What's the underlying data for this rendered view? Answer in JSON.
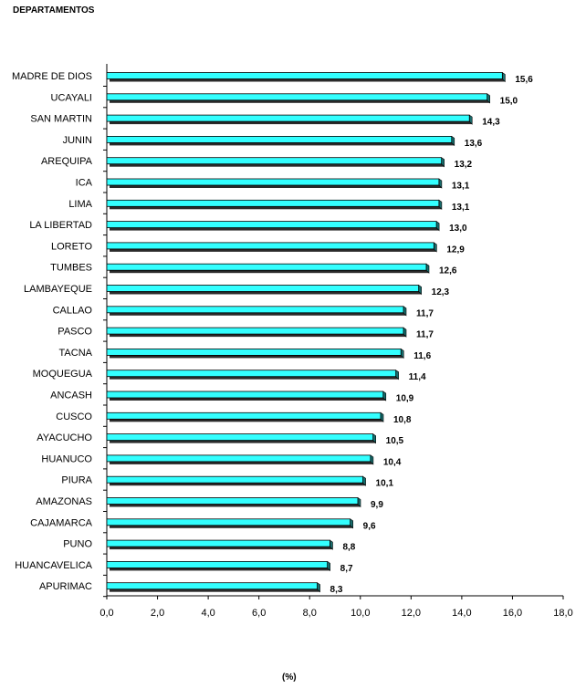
{
  "chart_data": {
    "type": "bar",
    "orientation": "horizontal",
    "title": "DEPARTAMENTOS",
    "xlabel": "(%)",
    "ylabel": "",
    "xlim": [
      0,
      18
    ],
    "x_ticks": [
      "0,0",
      "2,0",
      "4,0",
      "6,0",
      "8,0",
      "10,0",
      "12,0",
      "14,0",
      "16,0",
      "18,0"
    ],
    "grid": false,
    "legend": "none",
    "bar_color": "#33ffff",
    "categories": [
      "MADRE DE DIOS",
      "UCAYALI",
      "SAN MARTIN",
      "JUNIN",
      "AREQUIPA",
      "ICA",
      "LIMA",
      "LA LIBERTAD",
      "LORETO",
      "TUMBES",
      "LAMBAYEQUE",
      "CALLAO",
      "PASCO",
      "TACNA",
      "MOQUEGUA",
      "ANCASH",
      "CUSCO",
      "AYACUCHO",
      "HUANUCO",
      "PIURA",
      "AMAZONAS",
      "CAJAMARCA",
      "PUNO",
      "HUANCAVELICA",
      "APURIMAC"
    ],
    "values": [
      15.6,
      15.0,
      14.3,
      13.6,
      13.2,
      13.1,
      13.1,
      13.0,
      12.9,
      12.6,
      12.3,
      11.7,
      11.7,
      11.6,
      11.4,
      10.9,
      10.8,
      10.5,
      10.4,
      10.1,
      9.9,
      9.6,
      8.8,
      8.7,
      8.3
    ],
    "value_labels": [
      "15,6",
      "15,0",
      "14,3",
      "13,6",
      "13,2",
      "13,1",
      "13,1",
      "13,0",
      "12,9",
      "12,6",
      "12,3",
      "11,7",
      "11,7",
      "11,6",
      "11,4",
      "10,9",
      "10,8",
      "10,5",
      "10,4",
      "10,1",
      "9,9",
      "9,6",
      "8,8",
      "8,7",
      "8,3"
    ]
  }
}
